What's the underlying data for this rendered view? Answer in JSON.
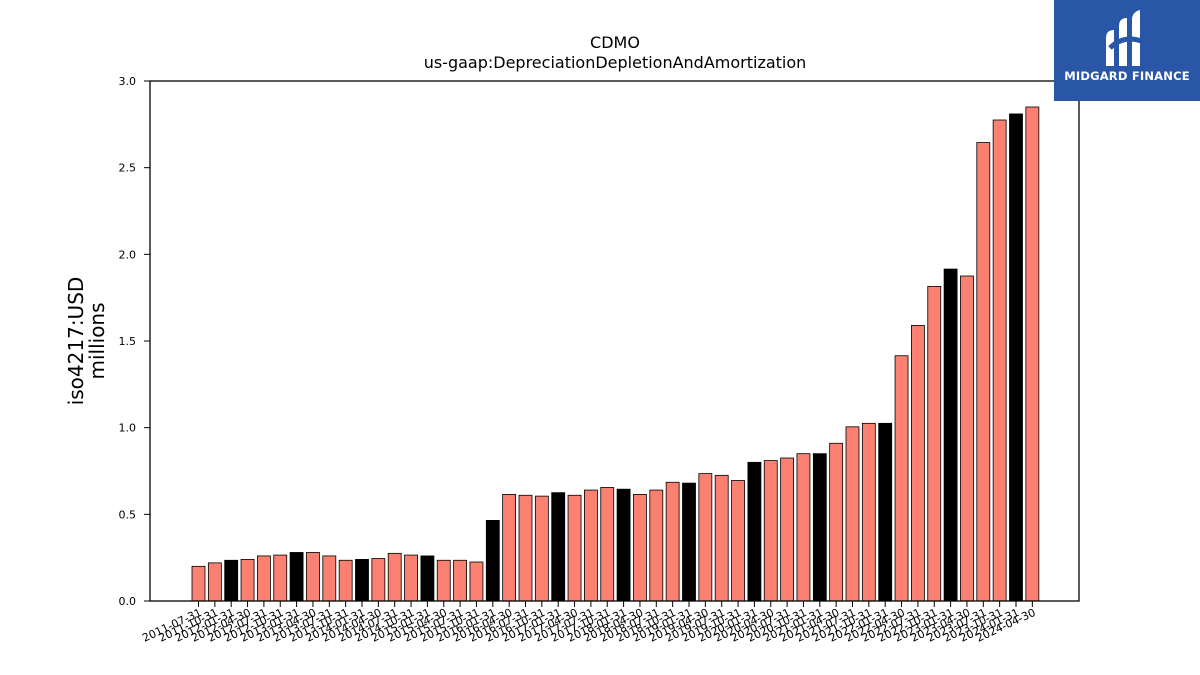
{
  "logo": {
    "text": "MIDGARD FINANCE",
    "icon": "midgard-m-logo-icon",
    "background": "#2a56a8"
  },
  "chart_data": {
    "type": "bar",
    "title": "CDMO",
    "subtitle": "us-gaap:DepreciationDepletionAndAmortization",
    "ylabel": "iso4217:USD",
    "ylabel2": "millions",
    "xlabel": "",
    "ylim": [
      0,
      3.0
    ],
    "yticks": [
      "0.0",
      "0.5",
      "1.0",
      "1.5",
      "2.0",
      "2.5",
      "3.0"
    ],
    "grid": false,
    "colors": {
      "quarter": "#fa8072",
      "fiscal_year_end": "#000000",
      "edge": "#000000"
    },
    "categories": [
      "2011-07-31",
      "2011-10-31",
      "2012-01-31",
      "2012-04-30",
      "2012-07-31",
      "2012-10-31",
      "2013-01-31",
      "2013-04-30",
      "2013-07-31",
      "2013-10-31",
      "2014-01-31",
      "2014-04-30",
      "2014-07-31",
      "2014-10-31",
      "2015-01-31",
      "2015-04-30",
      "2015-07-31",
      "2015-10-31",
      "2016-01-31",
      "2016-04-30",
      "2016-07-31",
      "2016-10-31",
      "2017-01-31",
      "2017-04-30",
      "2017-07-31",
      "2017-10-31",
      "2018-01-31",
      "2018-04-30",
      "2018-07-31",
      "2018-10-31",
      "2019-01-31",
      "2019-04-30",
      "2019-07-31",
      "2019-10-31",
      "2020-01-31",
      "2020-04-30",
      "2020-07-31",
      "2020-10-31",
      "2021-01-31",
      "2021-04-30",
      "2021-07-31",
      "2021-10-31",
      "2022-01-31",
      "2022-04-30",
      "2022-07-31",
      "2022-10-31",
      "2023-01-31",
      "2023-04-30",
      "2023-07-31",
      "2023-10-31",
      "2024-01-31",
      "2024-04-30"
    ],
    "values": [
      0.2,
      0.22,
      0.235,
      0.24,
      0.26,
      0.265,
      0.28,
      0.28,
      0.26,
      0.235,
      0.24,
      0.245,
      0.275,
      0.265,
      0.26,
      0.235,
      0.235,
      0.225,
      0.465,
      0.615,
      0.61,
      0.605,
      0.625,
      0.61,
      0.64,
      0.655,
      0.645,
      0.615,
      0.64,
      0.685,
      0.68,
      0.735,
      0.725,
      0.695,
      0.8,
      0.81,
      0.825,
      0.85,
      0.85,
      0.91,
      1.005,
      1.025,
      1.025,
      1.415,
      1.59,
      1.815,
      1.915,
      1.875,
      2.645,
      2.775,
      2.81,
      2.85
    ],
    "black_bars": [
      2,
      6,
      10,
      14,
      18,
      22,
      26,
      30,
      34,
      38,
      42,
      46,
      50
    ]
  }
}
